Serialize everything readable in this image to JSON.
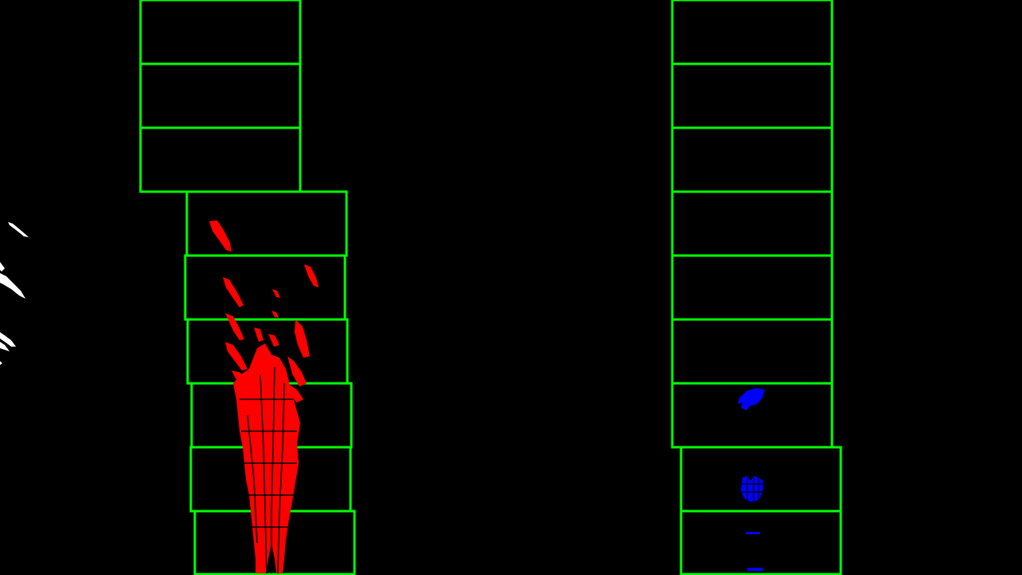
{
  "colors": {
    "background": "#000000",
    "window_outline": "#00ff00",
    "left_lane_pixels": "#ff0000",
    "right_lane_pixels": "#0000ff",
    "unassigned_pixels": "#ffffff"
  },
  "lanes": [
    {
      "side": "left",
      "pixel_color": "#ff0000",
      "window_count": 9
    },
    {
      "side": "right",
      "pixel_color": "#0000ff",
      "window_count": 9
    }
  ]
}
